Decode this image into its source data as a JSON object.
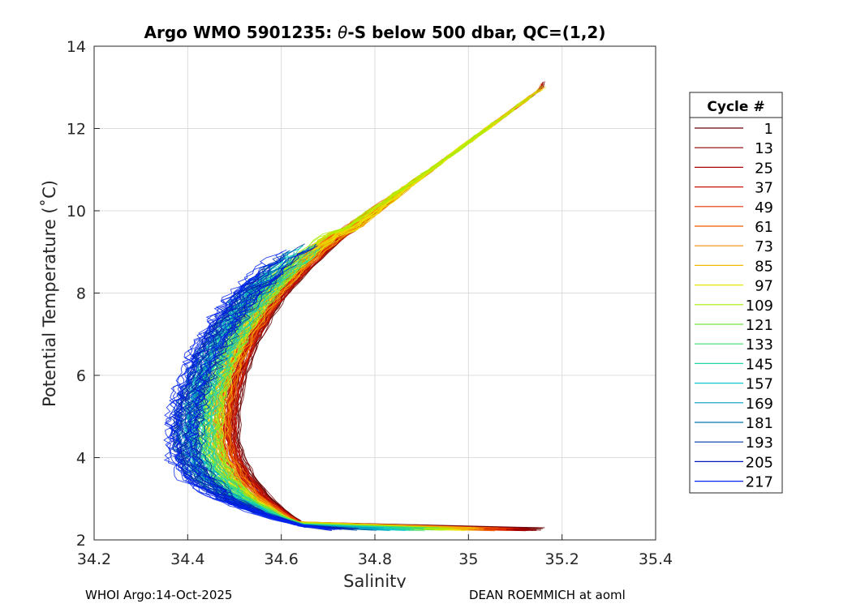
{
  "chart_data": {
    "type": "line",
    "title_prefix": "Argo WMO 5901235: ",
    "title_theta": "θ",
    "title_suffix": "-S below 500 dbar,  QC=(1,2)",
    "xlabel": "Salinity",
    "ylabel": "Potential Temperature (˚C)",
    "xlim": [
      34.2,
      35.4
    ],
    "ylim": [
      2,
      14
    ],
    "xticks": [
      "34.2",
      "34.4",
      "34.6",
      "34.8",
      "35",
      "35.2",
      "35.4"
    ],
    "yticks": [
      "2",
      "4",
      "6",
      "8",
      "10",
      "12",
      "14"
    ],
    "grid": true,
    "legend": {
      "title": "Cycle #",
      "placement": "right-outside",
      "entries": [
        {
          "label": "1",
          "color": "#6b0000"
        },
        {
          "label": "13",
          "color": "#8a0000"
        },
        {
          "label": "25",
          "color": "#a80000"
        },
        {
          "label": "37",
          "color": "#c91500"
        },
        {
          "label": "49",
          "color": "#e43000"
        },
        {
          "label": "61",
          "color": "#ee5a00"
        },
        {
          "label": "73",
          "color": "#f08a00"
        },
        {
          "label": "85",
          "color": "#f5b800"
        },
        {
          "label": "97",
          "color": "#e8e600"
        },
        {
          "label": "109",
          "color": "#a8ee00"
        },
        {
          "label": "121",
          "color": "#6ee83a"
        },
        {
          "label": "133",
          "color": "#3edd6e"
        },
        {
          "label": "145",
          "color": "#1ed6a6"
        },
        {
          "label": "157",
          "color": "#10c8cc"
        },
        {
          "label": "169",
          "color": "#009ec0"
        },
        {
          "label": "181",
          "color": "#0074b0"
        },
        {
          "label": "193",
          "color": "#0036a6"
        },
        {
          "label": "205",
          "color": "#0018b8"
        },
        {
          "label": "217",
          "color": "#0022ee"
        }
      ]
    },
    "profile_shape": {
      "theta": [
        2.3,
        2.6,
        3.0,
        3.5,
        4.0,
        4.5,
        5.0,
        5.5,
        6.0,
        6.5,
        7.0,
        7.5,
        8.0,
        8.5,
        9.0,
        9.5,
        10.0,
        10.5,
        11.0,
        11.5,
        12.0,
        12.5,
        13.0
      ],
      "salinity_early": [
        34.66,
        34.62,
        34.575,
        34.535,
        34.51,
        34.5,
        34.5,
        34.505,
        34.515,
        34.53,
        34.55,
        34.575,
        34.605,
        34.645,
        34.69,
        34.74,
        34.8,
        34.86,
        34.92,
        34.98,
        35.04,
        35.1,
        35.16
      ],
      "salinity_late": [
        34.66,
        34.56,
        34.47,
        34.41,
        34.385,
        34.38,
        34.385,
        34.395,
        34.41,
        34.43,
        34.455,
        34.485,
        34.52,
        34.565,
        34.62,
        34.69
      ]
    }
  },
  "footer": {
    "left": "WHOI Argo:14-Oct-2025",
    "right": "DEAN ROEMMICH at aoml"
  }
}
